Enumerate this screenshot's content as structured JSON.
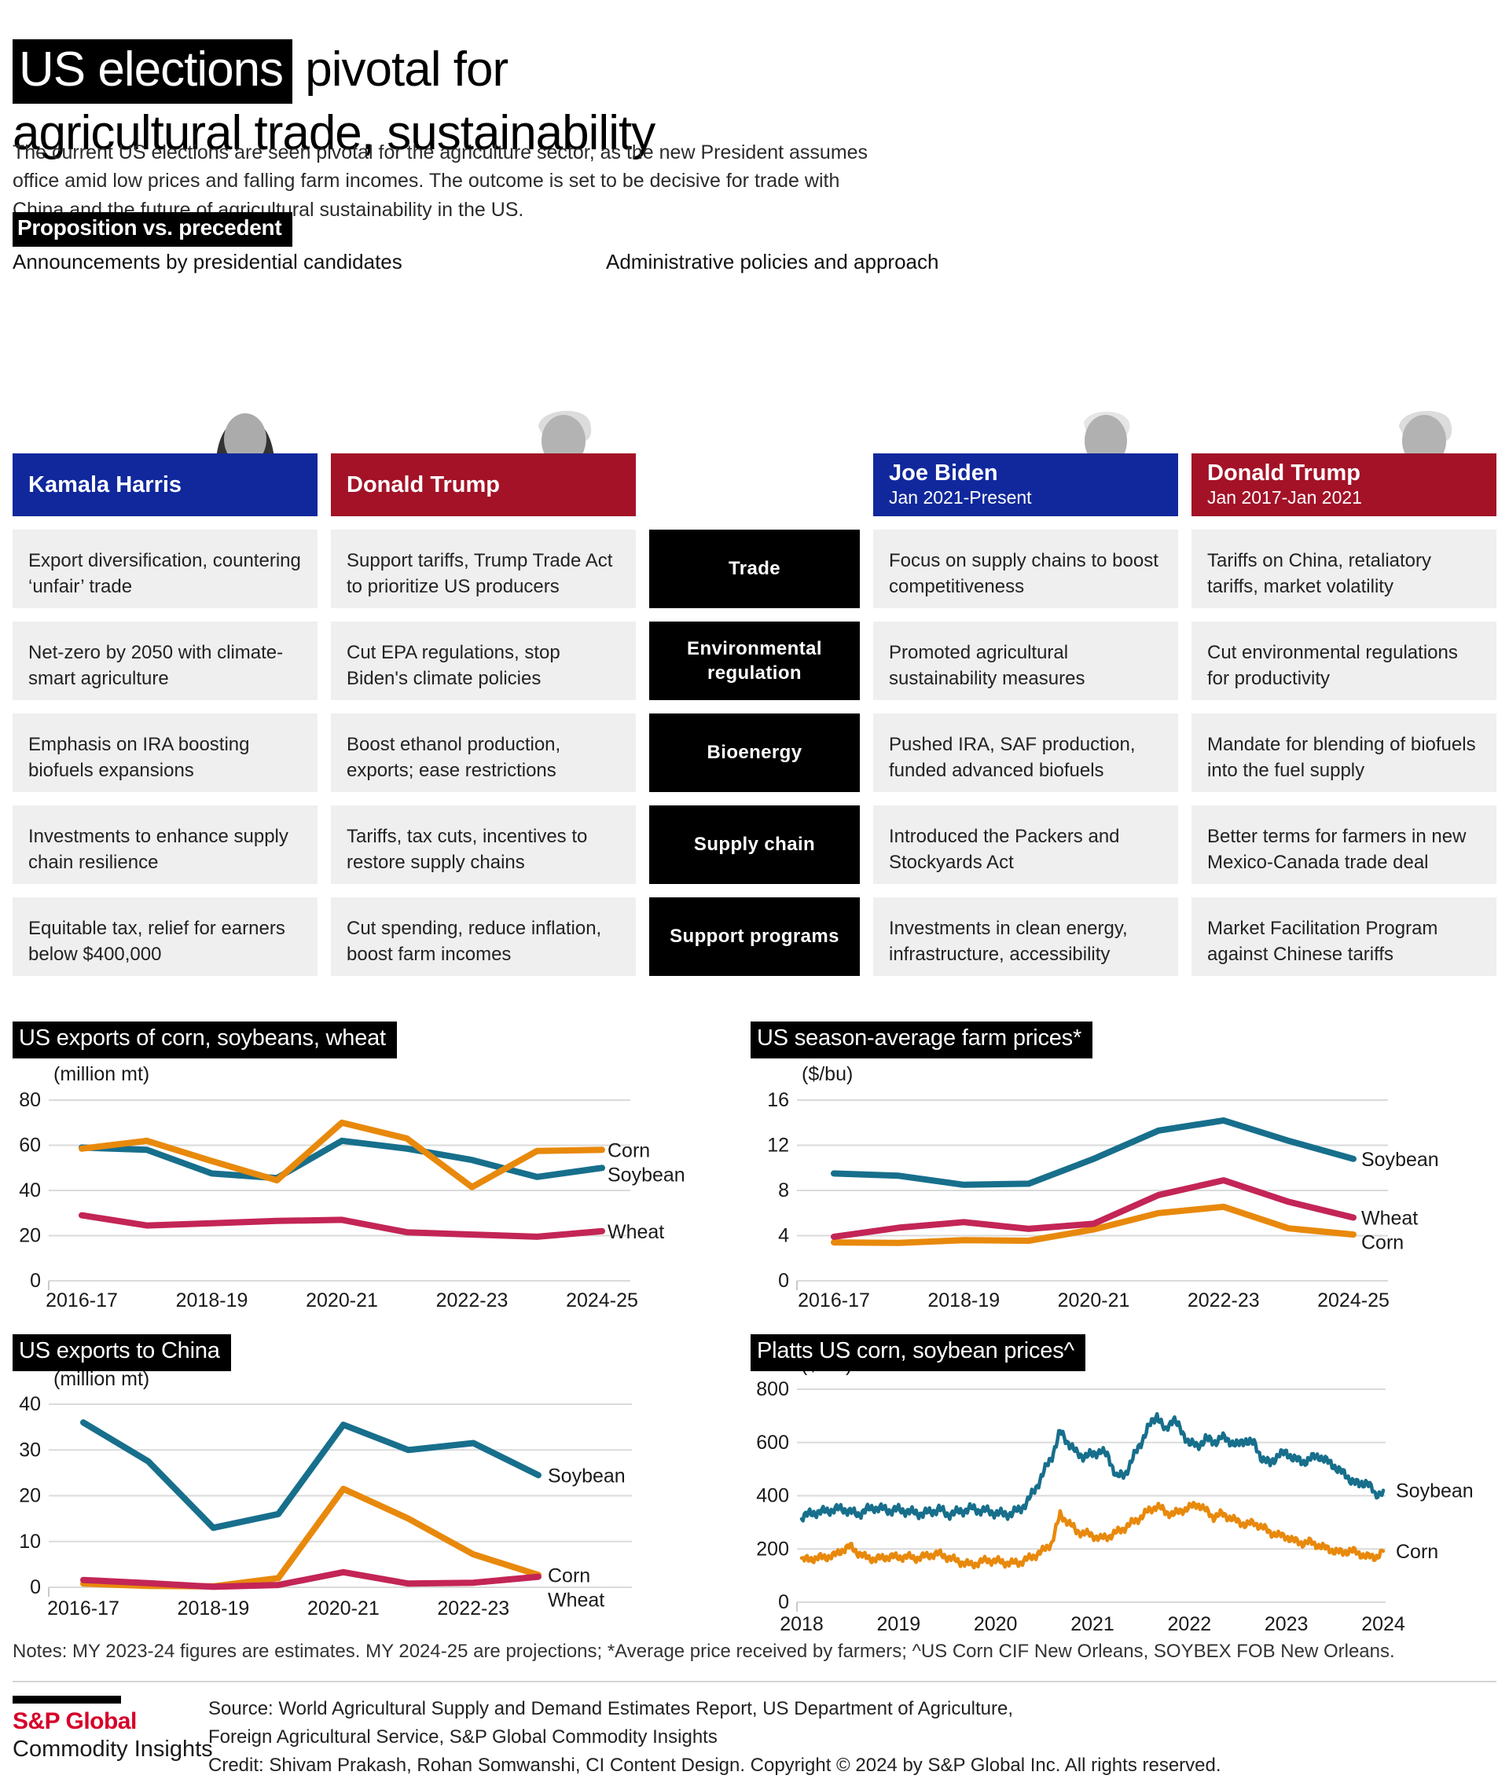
{
  "title": {
    "highlight": "US elections",
    "line1_rest": " pivotal for",
    "line2": "agricultural trade, sustainability"
  },
  "intro": {
    "line1": "The current US elections are seen pivotal for the agriculture sector, as the new President assumes",
    "line2": "office amid low prices and falling farm incomes. The outcome is set to be decisive for trade with",
    "line3": "China and the future of agricultural sustainability in the US."
  },
  "comparison": {
    "section_label": "Proposition vs. precedent",
    "left_header": "Announcements by presidential candidates",
    "right_header": "Administrative policies and approach",
    "people": [
      {
        "name": "Kamala Harris",
        "term": "",
        "party_color": "#10289C"
      },
      {
        "name": "Donald Trump",
        "term": "",
        "party_color": "#A31227"
      },
      {
        "name": "Joe Biden",
        "term": "Jan 2021-Present",
        "party_color": "#10289C"
      },
      {
        "name": "Donald Trump",
        "term": "Jan 2017-Jan 2021",
        "party_color": "#A31227"
      }
    ],
    "rows": [
      {
        "category": "Trade",
        "harris": "Export diversification, countering ‘unfair’ trade",
        "trump": "Support tariffs, Trump Trade Act to prioritize US producers",
        "biden": "Focus on supply chains to boost competitiveness",
        "trump2": "Tariffs on China, retaliatory tariffs, market volatility"
      },
      {
        "category": "Environmental regulation",
        "harris": "Net-zero by 2050 with climate-smart agriculture",
        "trump": "Cut EPA regulations, stop Biden's climate policies",
        "biden": "Promoted agricultural sustainability measures",
        "trump2": "Cut environmental regulations for productivity"
      },
      {
        "category": "Bioenergy",
        "harris": "Emphasis on IRA boosting biofuels expansions",
        "trump": "Boost ethanol production, exports; ease restrictions",
        "biden": "Pushed IRA, SAF production, funded advanced biofuels",
        "trump2": "Mandate for blending of biofuels into the fuel supply"
      },
      {
        "category": "Supply chain",
        "harris": "Investments to enhance supply chain resilience",
        "trump": "Tariffs, tax cuts, incentives to restore supply chains",
        "biden": "Introduced the Packers and Stockyards Act",
        "trump2": "Better terms for farmers in new Mexico-Canada trade deal"
      },
      {
        "category": "Support programs",
        "harris": "Equitable tax, relief for earners below $400,000",
        "trump": "Cut spending, reduce inflation, boost farm incomes",
        "biden": "Investments in clean energy, infrastructure, accessibility",
        "trump2": "Market Facilitation Program against Chinese tariffs"
      }
    ]
  },
  "colors": {
    "teal": "#176F8C",
    "orange": "#E8890C",
    "crimson": "#C32556",
    "blue_bar": "#10289C",
    "red_bar": "#A31227",
    "cell_bg": "#EFEFEF",
    "brand_red": "#D6002A"
  },
  "chart_data": [
    {
      "id": "exports",
      "type": "line",
      "title": "US exports of corn, soybeans, wheat",
      "unit": "(million mt)",
      "categories": [
        "2016-17",
        "2017-18",
        "2018-19",
        "2019-20",
        "2020-21",
        "2021-22",
        "2022-23",
        "2023-24",
        "2024-25"
      ],
      "xticks": [
        "2016-17",
        "2018-19",
        "2020-21",
        "2022-23",
        "2024-25"
      ],
      "ylim": [
        0,
        80
      ],
      "yticks": [
        0,
        20,
        40,
        60,
        80
      ],
      "legend_position": "right",
      "series": [
        {
          "name": "Soybean",
          "color": "#176F8C",
          "values": [
            59,
            58,
            47.5,
            45.5,
            62,
            58.5,
            53.5,
            46,
            50
          ]
        },
        {
          "name": "Wheat",
          "color": "#C32556",
          "values": [
            29,
            24.5,
            25.5,
            26.5,
            27,
            21.5,
            20.5,
            19.5,
            22
          ]
        },
        {
          "name": "Corn",
          "color": "#E8890C",
          "values": [
            58.5,
            62,
            53,
            44.5,
            70,
            63,
            41.5,
            57.5,
            58
          ]
        }
      ]
    },
    {
      "id": "farm_prices",
      "type": "line",
      "title": "US season-average farm prices*",
      "unit": "($/bu)",
      "categories": [
        "2016-17",
        "2017-18",
        "2018-19",
        "2019-20",
        "2020-21",
        "2021-22",
        "2022-23",
        "2023-24",
        "2024-25"
      ],
      "xticks": [
        "2016-17",
        "2018-19",
        "2020-21",
        "2022-23",
        "2024-25"
      ],
      "ylim": [
        0,
        16
      ],
      "yticks": [
        0,
        4,
        8,
        12,
        16
      ],
      "legend_position": "right",
      "series": [
        {
          "name": "Soybean",
          "color": "#176F8C",
          "values": [
            9.5,
            9.3,
            8.5,
            8.6,
            10.8,
            13.3,
            14.2,
            12.4,
            10.8
          ]
        },
        {
          "name": "Corn",
          "color": "#E8890C",
          "values": [
            3.4,
            3.35,
            3.6,
            3.55,
            4.55,
            6.0,
            6.55,
            4.65,
            4.1
          ]
        },
        {
          "name": "Wheat",
          "color": "#C32556",
          "values": [
            3.9,
            4.7,
            5.2,
            4.6,
            5.05,
            7.6,
            8.9,
            7.0,
            5.6
          ]
        }
      ]
    },
    {
      "id": "china_exports",
      "type": "line",
      "title": "US exports to China",
      "unit": "(million mt)",
      "categories": [
        "2016-17",
        "2017-18",
        "2018-19",
        "2019-20",
        "2020-21",
        "2021-22",
        "2022-23",
        "2023-24"
      ],
      "xticks": [
        "2016-17",
        "2018-19",
        "2020-21",
        "2022-23"
      ],
      "ylim": [
        0,
        40
      ],
      "yticks": [
        0,
        10,
        20,
        30,
        40
      ],
      "legend_position": "right",
      "series": [
        {
          "name": "Soybean",
          "color": "#176F8C",
          "values": [
            36,
            27.5,
            13,
            16,
            35.5,
            30,
            31.5,
            24.5
          ]
        },
        {
          "name": "Corn",
          "color": "#E8890C",
          "values": [
            0.8,
            0.3,
            0.2,
            2,
            21.5,
            15,
            7.2,
            2.7
          ]
        },
        {
          "name": "Wheat",
          "color": "#C32556",
          "values": [
            1.6,
            0.9,
            0.1,
            0.5,
            3.3,
            0.8,
            1.0,
            2.3
          ]
        }
      ]
    },
    {
      "id": "platts",
      "type": "line",
      "title": "Platts US corn, soybean prices^",
      "unit": "($/mt)",
      "x_start": 2018,
      "x_end": 2024,
      "frequency": "monthly",
      "xticks": [
        "2018",
        "2019",
        "2020",
        "2021",
        "2022",
        "2023",
        "2024"
      ],
      "ylim": [
        0,
        800
      ],
      "yticks": [
        0,
        200,
        400,
        600,
        800
      ],
      "legend_position": "right",
      "series": [
        {
          "name": "Soybean",
          "color": "#176F8C",
          "values": [
            320,
            332,
            338,
            342,
            348,
            352,
            340,
            330,
            346,
            356,
            350,
            344,
            348,
            342,
            336,
            332,
            340,
            350,
            330,
            336,
            344,
            352,
            346,
            342,
            336,
            330,
            334,
            348,
            380,
            430,
            490,
            550,
            640,
            600,
            560,
            548,
            555,
            570,
            545,
            470,
            480,
            540,
            600,
            660,
            705,
            640,
            695,
            640,
            600,
            585,
            615,
            600,
            620,
            605,
            590,
            610,
            595,
            540,
            520,
            555,
            560,
            540,
            525,
            540,
            550,
            530,
            510,
            485,
            460,
            440,
            455,
            400,
            420
          ]
        },
        {
          "name": "Corn",
          "color": "#E8890C",
          "values": [
            158,
            162,
            166,
            170,
            175,
            195,
            210,
            185,
            168,
            162,
            166,
            172,
            168,
            172,
            165,
            170,
            178,
            182,
            170,
            158,
            148,
            140,
            150,
            158,
            155,
            150,
            146,
            150,
            162,
            178,
            195,
            225,
            330,
            300,
            268,
            258,
            252,
            238,
            248,
            262,
            280,
            300,
            320,
            345,
            362,
            340,
            330,
            345,
            355,
            370,
            345,
            320,
            332,
            318,
            302,
            292,
            298,
            282,
            262,
            252,
            246,
            230,
            222,
            226,
            212,
            202,
            192,
            186,
            196,
            182,
            172,
            168,
            192
          ]
        }
      ]
    }
  ],
  "notes": {
    "text": "Notes: MY 2023-24 figures are estimates. MY 2024-25 are projections; *Average price received by farmers; ^US Corn CIF New Orleans, SOYBEX FOB New Orleans."
  },
  "footer": {
    "brand_line1": "S&P Global",
    "brand_line2": "Commodity Insights",
    "source_line1": "Source: World Agricultural Supply and Demand Estimates Report, US Department of Agriculture,",
    "source_line2": "Foreign Agricultural Service, S&P Global Commodity Insights",
    "credit": "Credit: Shivam Prakash, Rohan Somwanshi, CI Content Design.  Copyright © 2024 by S&P Global Inc.  All rights reserved."
  }
}
